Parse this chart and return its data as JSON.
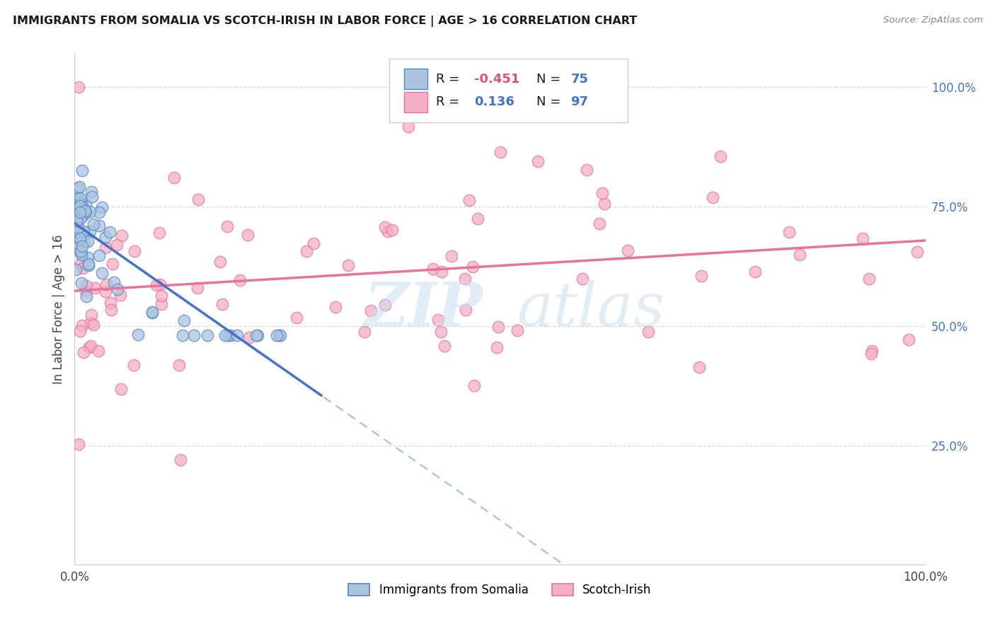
{
  "title": "IMMIGRANTS FROM SOMALIA VS SCOTCH-IRISH IN LABOR FORCE | AGE > 16 CORRELATION CHART",
  "source": "Source: ZipAtlas.com",
  "ylabel": "In Labor Force | Age > 16",
  "watermark_zip": "ZIP",
  "watermark_atlas": "atlas",
  "legend_somalia_R": "-0.451",
  "legend_somalia_N": "75",
  "legend_scotch_R": "0.136",
  "legend_scotch_N": "97",
  "somalia_fill": "#aac4e0",
  "scotch_fill": "#f5afc4",
  "somalia_edge": "#5585c8",
  "scotch_edge": "#e8729a",
  "somalia_line": "#4472c4",
  "scotch_line": "#e8729a",
  "dashed_color": "#a0bedd",
  "background_color": "#ffffff",
  "grid_color": "#d8d8d8",
  "right_tick_color": "#4472c4",
  "title_color": "#1a1a1a",
  "source_color": "#888888",
  "label_color": "#444444",
  "xlim": [
    0.0,
    1.0
  ],
  "ylim": [
    0.0,
    1.07
  ],
  "yticks": [
    0.25,
    0.5,
    0.75,
    1.0
  ],
  "ytick_labels": [
    "25.0%",
    "50.0%",
    "75.0%",
    "100.0%"
  ]
}
